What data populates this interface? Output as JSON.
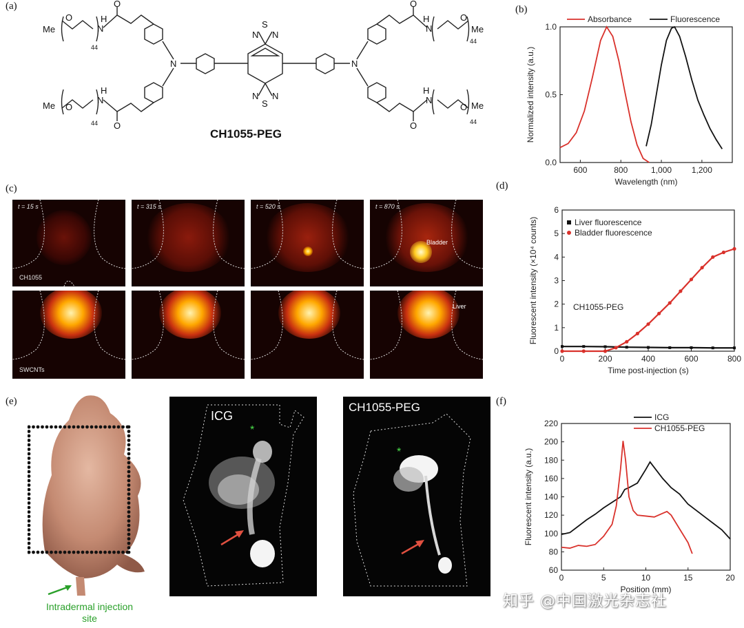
{
  "panels": {
    "a": "(a)",
    "b": "(b)",
    "c": "(c)",
    "d": "(d)",
    "e": "(e)",
    "f": "(f)"
  },
  "molecule": {
    "name": "CH1055-PEG",
    "me": "Me",
    "o": "O",
    "n": "N",
    "s": "S",
    "nh": "H",
    "repeat": "44"
  },
  "panel_c": {
    "times": [
      "t = 15 s",
      "t = 315 s",
      "t = 520 s",
      "t = 870 s"
    ],
    "row1_label": "CH1055",
    "row2_label": "SWCNTs",
    "bladder_label": "Bladder",
    "liver_label": "Liver"
  },
  "panel_e": {
    "injection_label_line1": "Intradermal injection",
    "injection_label_line2": "site",
    "icg_label": "ICG",
    "ch_label": "CH1055-PEG",
    "star": "*"
  },
  "watermark": "知乎 @中国激光杂志社",
  "chart_data": [
    {
      "panel": "b",
      "type": "line",
      "xlabel": "Wavelength (nm)",
      "ylabel": "Normalized intensity (a.u.)",
      "xlim": [
        500,
        1350
      ],
      "ylim": [
        0.0,
        1.0
      ],
      "xticks": [
        600,
        800,
        1000,
        1200
      ],
      "xtick_labels": [
        "600",
        "800",
        "1,000",
        "1,200"
      ],
      "yticks": [
        0.0,
        0.5,
        1.0
      ],
      "ytick_labels": [
        "0.0",
        "0.5",
        "1.0"
      ],
      "series": [
        {
          "name": "Absorbance",
          "color": "#d9312b",
          "x": [
            500,
            540,
            580,
            620,
            660,
            700,
            730,
            760,
            790,
            820,
            850,
            880,
            910,
            940
          ],
          "y": [
            0.11,
            0.14,
            0.22,
            0.38,
            0.63,
            0.9,
            1.0,
            0.93,
            0.75,
            0.52,
            0.3,
            0.13,
            0.03,
            0.0
          ]
        },
        {
          "name": "Fluorescence",
          "color": "#111111",
          "x": [
            925,
            950,
            975,
            1000,
            1025,
            1050,
            1065,
            1090,
            1120,
            1150,
            1180,
            1210,
            1240,
            1270,
            1300
          ],
          "y": [
            0.12,
            0.28,
            0.5,
            0.72,
            0.9,
            0.99,
            1.0,
            0.93,
            0.78,
            0.61,
            0.46,
            0.35,
            0.25,
            0.17,
            0.1
          ]
        }
      ]
    },
    {
      "panel": "d",
      "type": "scatter",
      "xlabel": "Time post-injection (s)",
      "ylabel": "Fluorescent intensity (×10⁴ counts)",
      "annotation": "CH1055-PEG",
      "xlim": [
        0,
        800
      ],
      "ylim": [
        0,
        6
      ],
      "xticks": [
        0,
        200,
        400,
        600,
        800
      ],
      "yticks": [
        0,
        1,
        2,
        3,
        4,
        5,
        6
      ],
      "series": [
        {
          "name": "Liver fluorescence",
          "color": "#111111",
          "x": [
            0,
            100,
            200,
            300,
            400,
            500,
            600,
            700,
            800
          ],
          "y": [
            0.2,
            0.2,
            0.19,
            0.17,
            0.16,
            0.15,
            0.15,
            0.14,
            0.14
          ]
        },
        {
          "name": "Bladder fluorescence",
          "color": "#d9312b",
          "x": [
            0,
            100,
            200,
            250,
            300,
            350,
            400,
            450,
            500,
            550,
            600,
            650,
            700,
            750,
            800
          ],
          "y": [
            0.0,
            0.0,
            0.0,
            0.15,
            0.4,
            0.75,
            1.15,
            1.6,
            2.05,
            2.55,
            3.05,
            3.55,
            4.0,
            4.2,
            4.35
          ]
        }
      ]
    },
    {
      "panel": "f",
      "type": "line",
      "xlabel": "Position (mm)",
      "ylabel": "Fluorescent intensity (a.u.)",
      "xlim": [
        0,
        20
      ],
      "ylim": [
        60,
        220
      ],
      "xticks": [
        0,
        5,
        10,
        15,
        20
      ],
      "yticks": [
        60,
        80,
        100,
        120,
        140,
        160,
        180,
        200,
        220
      ],
      "series": [
        {
          "name": "ICG",
          "color": "#111111",
          "x": [
            0,
            1,
            2,
            3,
            4,
            5,
            6,
            7,
            7.5,
            8,
            9,
            10,
            10.5,
            11,
            12,
            13,
            14,
            15,
            16,
            17,
            18,
            19,
            20
          ],
          "y": [
            99,
            101,
            108,
            115,
            121,
            128,
            134,
            140,
            148,
            150,
            155,
            170,
            178,
            172,
            160,
            150,
            143,
            132,
            125,
            118,
            111,
            104,
            94
          ]
        },
        {
          "name": "CH1055-PEG",
          "color": "#d9312b",
          "x": [
            0,
            1,
            2,
            3,
            4,
            5,
            6,
            6.5,
            7,
            7.3,
            7.6,
            8,
            8.5,
            9,
            10,
            11,
            12,
            12.5,
            13,
            14,
            15,
            15.5
          ],
          "y": [
            85,
            84,
            87,
            86,
            88,
            97,
            110,
            130,
            170,
            201,
            180,
            140,
            125,
            120,
            119,
            118,
            122,
            124,
            120,
            105,
            90,
            78
          ]
        }
      ]
    }
  ]
}
